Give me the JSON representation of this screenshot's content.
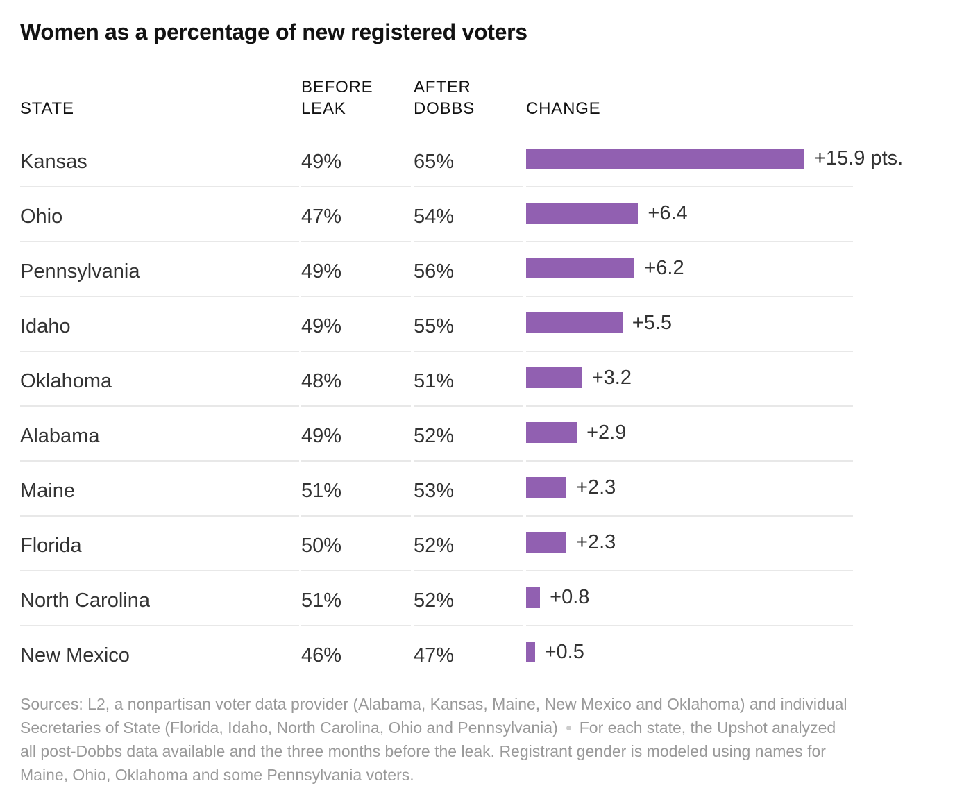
{
  "chart_data": {
    "type": "bar",
    "title": "Women as a percentage of new registered voters",
    "columns": {
      "state": [
        "STATE"
      ],
      "before": [
        "BEFORE",
        "LEAK"
      ],
      "after": [
        "AFTER",
        "DOBBS"
      ],
      "change": [
        "CHANGE"
      ]
    },
    "rows": [
      {
        "state": "Kansas",
        "before": "49%",
        "after": "65%",
        "change": 15.9,
        "change_label": "+15.9 pts."
      },
      {
        "state": "Ohio",
        "before": "47%",
        "after": "54%",
        "change": 6.4,
        "change_label": "+6.4"
      },
      {
        "state": "Pennsylvania",
        "before": "49%",
        "after": "56%",
        "change": 6.2,
        "change_label": "+6.2"
      },
      {
        "state": "Idaho",
        "before": "49%",
        "after": "55%",
        "change": 5.5,
        "change_label": "+5.5"
      },
      {
        "state": "Oklahoma",
        "before": "48%",
        "after": "51%",
        "change": 3.2,
        "change_label": "+3.2"
      },
      {
        "state": "Alabama",
        "before": "49%",
        "after": "52%",
        "change": 2.9,
        "change_label": "+2.9"
      },
      {
        "state": "Maine",
        "before": "51%",
        "after": "53%",
        "change": 2.3,
        "change_label": "+2.3"
      },
      {
        "state": "Florida",
        "before": "50%",
        "after": "52%",
        "change": 2.3,
        "change_label": "+2.3"
      },
      {
        "state": "North Carolina",
        "before": "51%",
        "after": "52%",
        "change": 0.8,
        "change_label": "+0.8"
      },
      {
        "state": "New Mexico",
        "before": "46%",
        "after": "47%",
        "change": 0.5,
        "change_label": "+0.5"
      }
    ],
    "bar_color": "#9160b1",
    "source_note": "Sources: L2, a nonpartisan voter data provider (Alabama, Kansas, Maine, New Mexico and Oklahoma) and individual Secretaries of State (Florida, Idaho, North Carolina, Ohio and Pennsylvania)",
    "method_note": "For each state, the Upshot analyzed all post-Dobbs data available and the three months before the leak. Registrant gender is modeled using names for Maine, Ohio, Oklahoma and some Pennsylvania voters."
  }
}
